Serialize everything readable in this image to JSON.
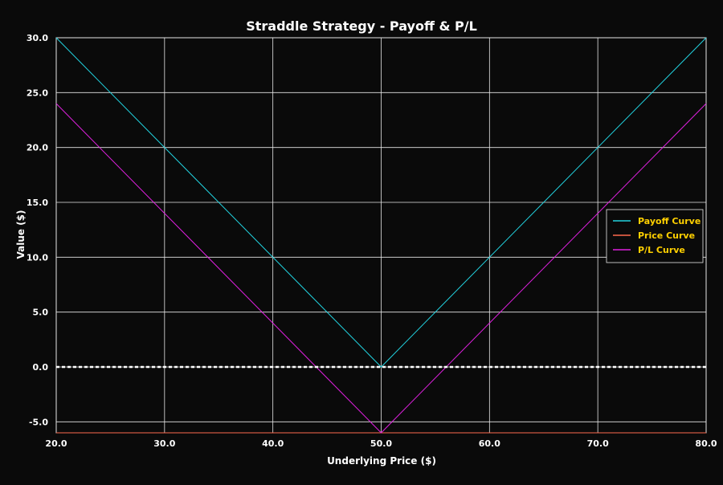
{
  "chart_data": {
    "type": "line",
    "title": "Straddle Strategy - Payoff & P/L",
    "xlabel": "Underlying Price ($)",
    "ylabel": "Value ($)",
    "xlim": [
      20,
      80
    ],
    "ylim": [
      -6,
      30
    ],
    "x_ticks": [
      20,
      30,
      40,
      50,
      60,
      70,
      80
    ],
    "x_tick_labels": [
      "20.0",
      "30.0",
      "40.0",
      "50.0",
      "60.0",
      "70.0",
      "80.0"
    ],
    "y_ticks": [
      -5,
      0,
      5,
      10,
      15,
      20,
      25,
      30
    ],
    "y_tick_labels": [
      "-5.0",
      "0.0",
      "5.0",
      "10.0",
      "15.0",
      "20.0",
      "25.0",
      "30.0"
    ],
    "grid": true,
    "legend_position": "right",
    "zero_line": {
      "y": 0,
      "style": "dashed",
      "color": "#ffffff"
    },
    "series": [
      {
        "name": "Payoff Curve",
        "color": "#22d3e0",
        "x": [
          20,
          50,
          80
        ],
        "y": [
          30,
          0,
          30
        ]
      },
      {
        "name": "Price Curve",
        "color": "#ff6a4d",
        "x": [
          20,
          80
        ],
        "y": [
          -6,
          -6
        ]
      },
      {
        "name": "P/L Curve",
        "color": "#e020e0",
        "x": [
          20,
          50,
          80
        ],
        "y": [
          24,
          -6,
          24
        ]
      }
    ],
    "colors": {
      "background": "#0a0a0a",
      "grid": "#e6e6e6",
      "text": "#ffffff",
      "legend_text": "#ffd000"
    }
  }
}
